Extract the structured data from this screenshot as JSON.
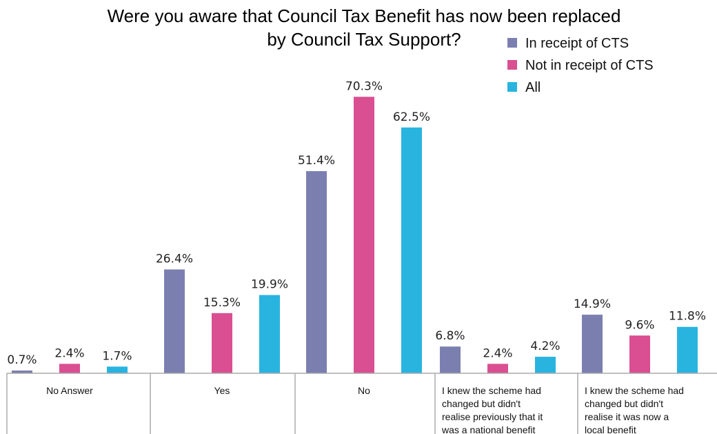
{
  "chart_data": {
    "type": "bar",
    "title_lines": [
      "Were you aware that Council Tax Benefit has now been replaced",
      "by Council Tax Support?"
    ],
    "categories": [
      [
        "No Answer"
      ],
      [
        "Yes"
      ],
      [
        "No"
      ],
      [
        "I knew the scheme had",
        "changed but didn't",
        "realise previously that it",
        "was a national benefit"
      ],
      [
        "I knew the scheme had",
        "changed but didn't",
        "realise it was now a",
        "local benefit"
      ]
    ],
    "series": [
      {
        "name": "In receipt of CTS",
        "color": "#7b7fb0",
        "values": [
          0.7,
          26.4,
          51.4,
          6.8,
          14.9
        ]
      },
      {
        "name": "Not in receipt of CTS",
        "color": "#d94f91",
        "values": [
          2.4,
          15.3,
          70.3,
          2.4,
          9.6
        ]
      },
      {
        "name": "All",
        "color": "#29b4e0",
        "values": [
          1.7,
          19.9,
          62.5,
          4.2,
          11.8
        ]
      }
    ],
    "value_suffix": "%",
    "legend_position": "top-right",
    "grid": false
  }
}
